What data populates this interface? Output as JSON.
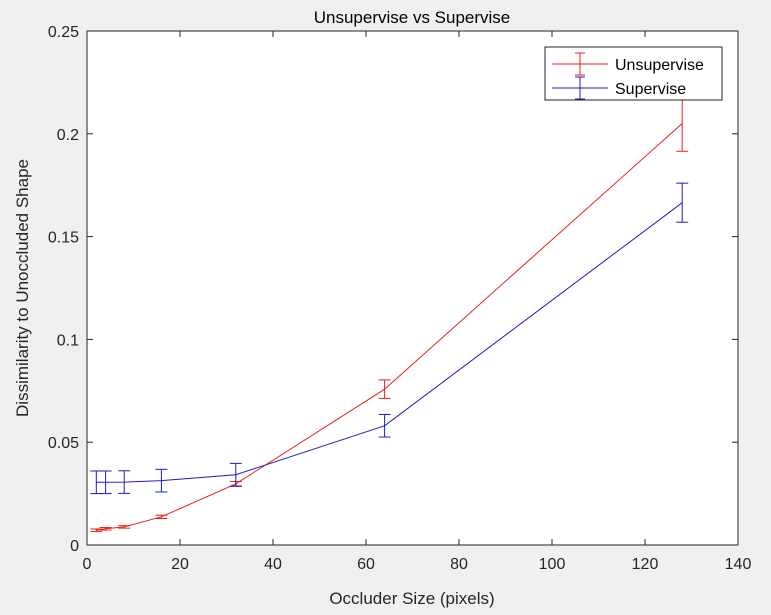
{
  "chart_data": {
    "type": "line",
    "title": "Unsupervise vs Supervise",
    "xlabel": "Occluder Size (pixels)",
    "ylabel": "Dissimilarity to Unoccluded Shape",
    "xlim": [
      0,
      140
    ],
    "ylim": [
      0,
      0.25
    ],
    "x_ticks": [
      0,
      20,
      40,
      60,
      80,
      100,
      120,
      140
    ],
    "y_ticks": [
      0,
      0.05,
      0.1,
      0.15,
      0.2,
      0.25
    ],
    "x_tick_labels": [
      "0",
      "20",
      "40",
      "60",
      "80",
      "100",
      "120",
      "140"
    ],
    "y_tick_labels": [
      "0",
      "0.05",
      "0.1",
      "0.15",
      "0.2",
      "0.25"
    ],
    "grid": false,
    "legend_position": "top-right",
    "x": [
      2,
      4,
      8,
      16,
      32,
      64,
      128
    ],
    "series": [
      {
        "name": "Unsupervise",
        "color": "#e8201c",
        "values": [
          0.0072,
          0.0079,
          0.0088,
          0.0137,
          0.0297,
          0.0758,
          0.205
        ],
        "errors": [
          0.0006,
          0.0006,
          0.0006,
          0.0008,
          0.0012,
          0.0045,
          0.0135
        ]
      },
      {
        "name": "Supervise",
        "color": "#1c1cc8",
        "values": [
          0.0305,
          0.0305,
          0.0306,
          0.0313,
          0.0342,
          0.058,
          0.1665
        ],
        "errors": [
          0.0055,
          0.0055,
          0.0055,
          0.0055,
          0.0055,
          0.0055,
          0.0095
        ]
      }
    ]
  }
}
